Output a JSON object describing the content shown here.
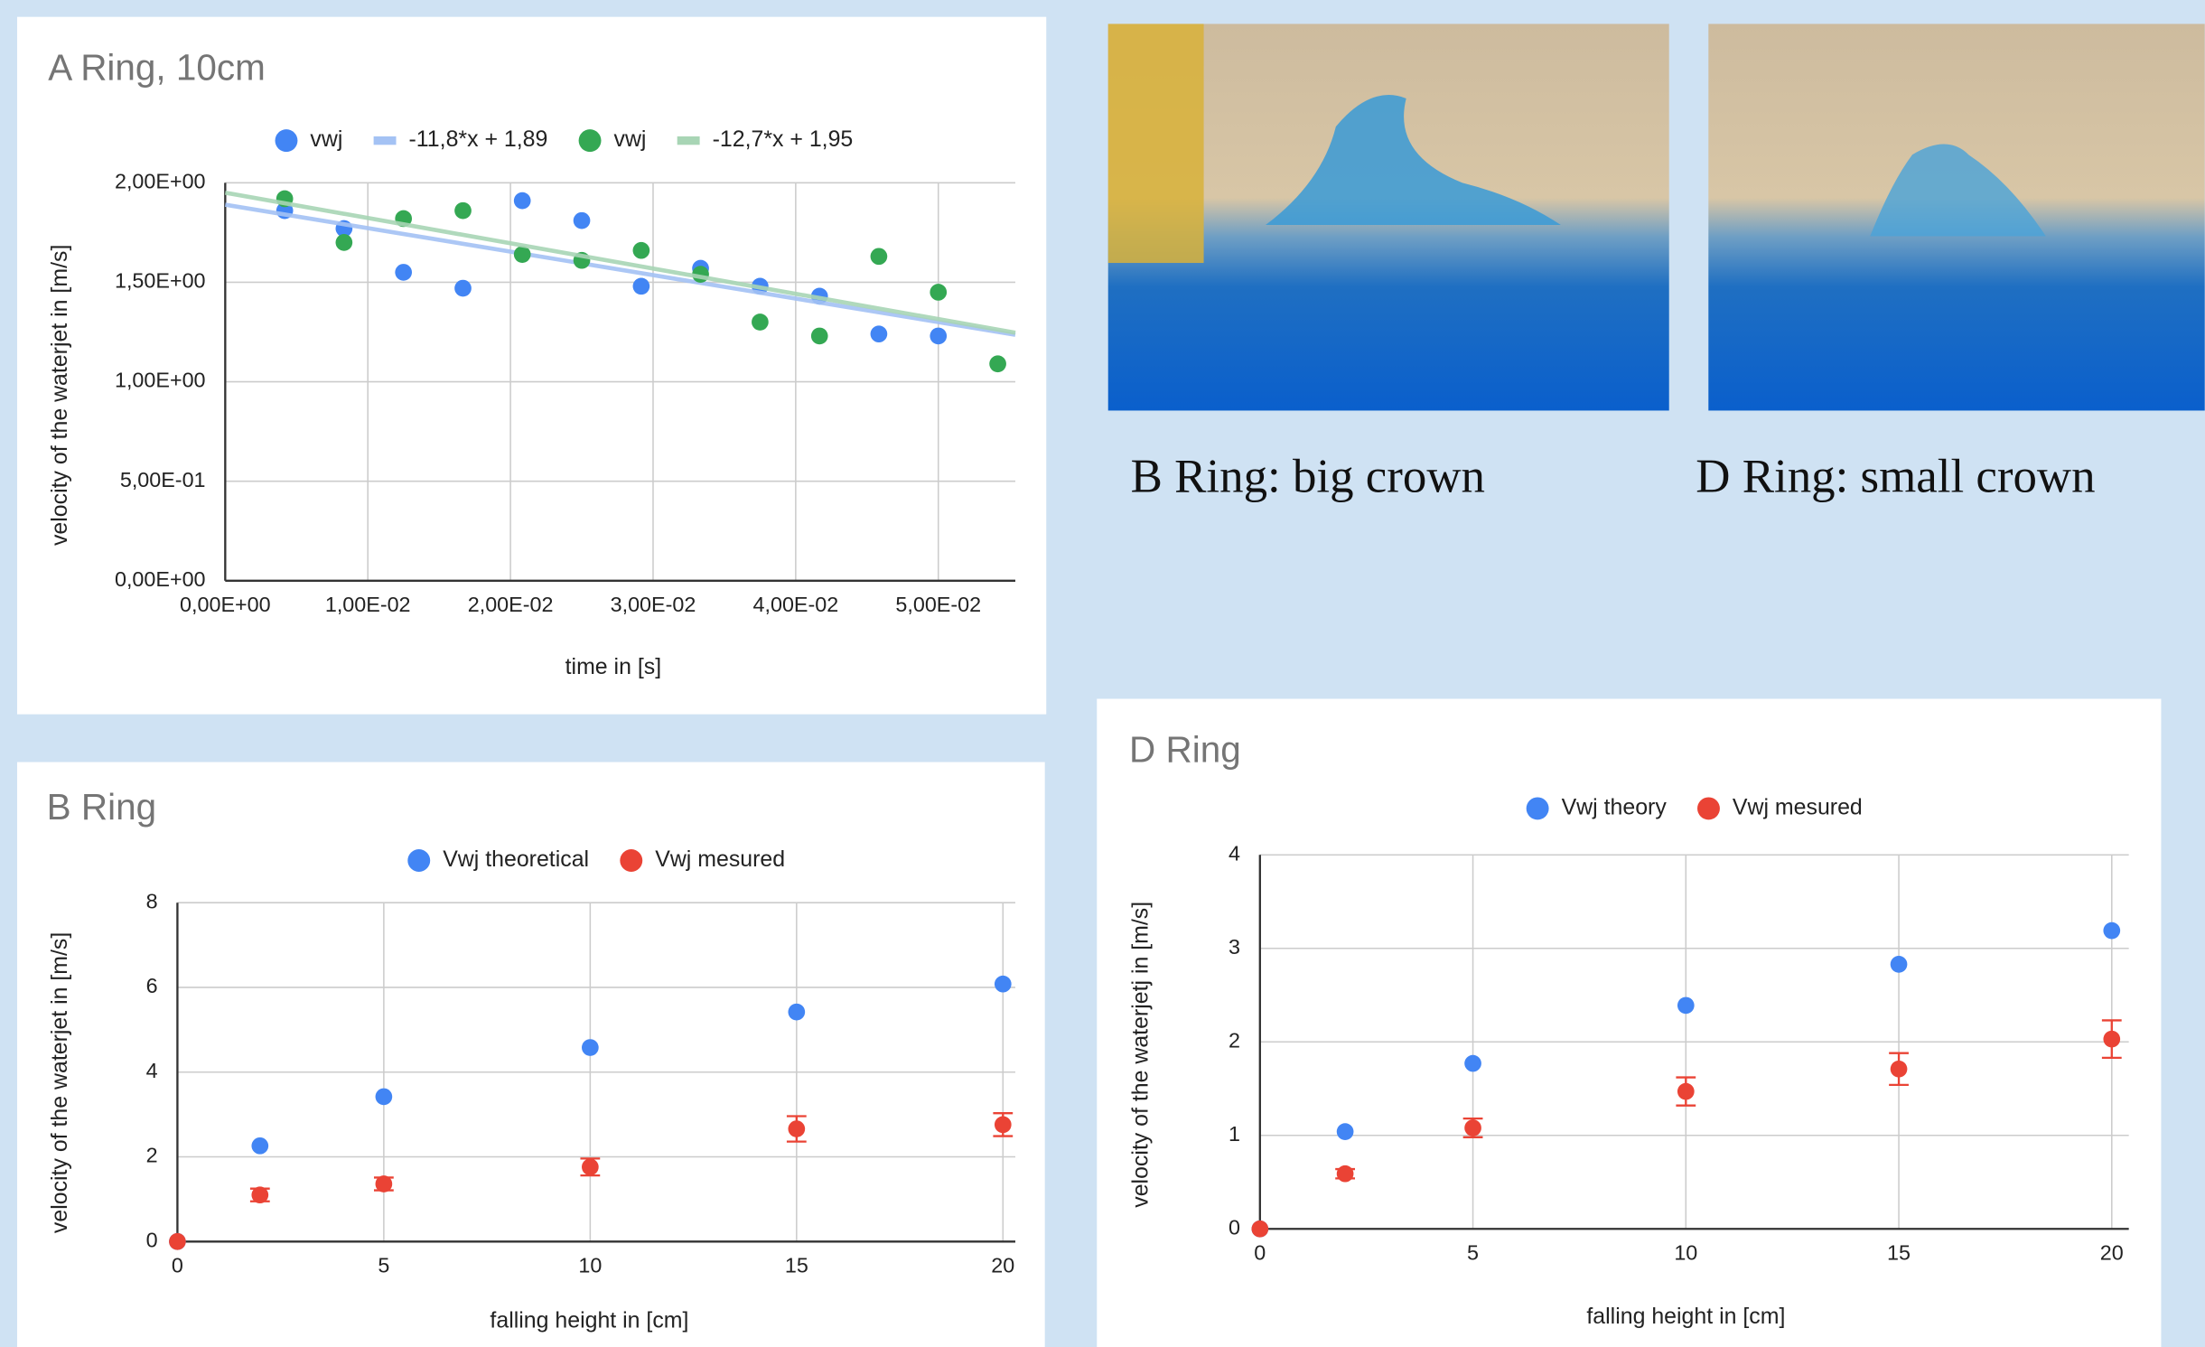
{
  "chart_data": [
    {
      "type": "scatter",
      "title": "A Ring, 10cm",
      "x_label": "time in [s]",
      "y_label": "velocity of the waterjet in [m/s]",
      "xlim": [
        0,
        0.0554
      ],
      "ylim": [
        0,
        2
      ],
      "grid": true,
      "xticks": [
        {
          "value": 0,
          "label": "0,00E+00"
        },
        {
          "value": 0.01,
          "label": "1,00E-02"
        },
        {
          "value": 0.02,
          "label": "2,00E-02"
        },
        {
          "value": 0.03,
          "label": "3,00E-02"
        },
        {
          "value": 0.04,
          "label": "4,00E-02"
        },
        {
          "value": 0.05,
          "label": "5,00E-02"
        }
      ],
      "yticks": [
        {
          "value": 0,
          "label": "0,00E+00"
        },
        {
          "value": 0.5,
          "label": "5,00E-01"
        },
        {
          "value": 1,
          "label": "1,00E+00"
        },
        {
          "value": 1.5,
          "label": "1,50E+00"
        },
        {
          "value": 2,
          "label": "2,00E+00"
        }
      ],
      "series": [
        {
          "name": "vwj",
          "color": "#4285f4",
          "x": [
            0.00417,
            0.00833,
            0.0125,
            0.01667,
            0.02083,
            0.025,
            0.02917,
            0.03333,
            0.0375,
            0.04167,
            0.04583,
            0.05
          ],
          "values": [
            1.86,
            1.77,
            1.55,
            1.47,
            1.91,
            1.81,
            1.48,
            1.57,
            1.48,
            1.43,
            1.24,
            1.23
          ]
        },
        {
          "name": "-11,8*x + 1,89",
          "type": "trendline",
          "color": "#a4c2f4",
          "slope": -11.8,
          "intercept": 1.89
        },
        {
          "name": "vwj",
          "color": "#34a853",
          "x": [
            0.00417,
            0.00833,
            0.0125,
            0.01667,
            0.02083,
            0.025,
            0.02917,
            0.03333,
            0.0375,
            0.04167,
            0.04583,
            0.05,
            0.05417
          ],
          "values": [
            1.92,
            1.7,
            1.82,
            1.86,
            1.64,
            1.61,
            1.66,
            1.54,
            1.3,
            1.23,
            1.63,
            1.45,
            1.09
          ]
        },
        {
          "name": "-12,7*x + 1,95",
          "type": "trendline",
          "color": "#a8d5b5",
          "slope": -12.7,
          "intercept": 1.95
        }
      ]
    },
    {
      "type": "scatter",
      "title": "B Ring",
      "x_label": "falling height in [cm]",
      "y_label": "velocity of the waterjet in [m/s]",
      "xlim": [
        0,
        20.3
      ],
      "ylim": [
        0,
        8
      ],
      "grid": true,
      "xticks": [
        0,
        5,
        10,
        15,
        20
      ],
      "yticks": [
        0,
        2,
        4,
        6,
        8
      ],
      "x": [
        0,
        2,
        5,
        10,
        15,
        20
      ],
      "series": [
        {
          "name": "Vwj theoretical",
          "color": "#4285f4",
          "values": [
            0,
            2.26,
            3.42,
            4.58,
            5.42,
            6.08
          ]
        },
        {
          "name": "Vwj mesured",
          "color": "#ea4335",
          "values": [
            0,
            1.1,
            1.36,
            1.76,
            2.66,
            2.76
          ],
          "errors": [
            0,
            0.15,
            0.15,
            0.2,
            0.3,
            0.27
          ]
        }
      ]
    },
    {
      "type": "scatter",
      "title": "D Ring",
      "x_label": "falling height in [cm]",
      "y_label": "velocity of the waterjetj in [m/s]",
      "xlim": [
        0,
        20.4
      ],
      "ylim": [
        0,
        4
      ],
      "grid": true,
      "xticks": [
        0,
        5,
        10,
        15,
        20
      ],
      "yticks": [
        0,
        1,
        2,
        3,
        4
      ],
      "x": [
        0,
        2,
        5,
        10,
        15,
        20
      ],
      "series": [
        {
          "name": "Vwj theory",
          "color": "#4285f4",
          "values": [
            0,
            1.04,
            1.77,
            2.39,
            2.83,
            3.19
          ]
        },
        {
          "name": "Vwj mesured",
          "color": "#ea4335",
          "values": [
            0,
            0.59,
            1.08,
            1.47,
            1.71,
            2.03
          ],
          "errors": [
            0,
            0.05,
            0.1,
            0.15,
            0.17,
            0.2
          ]
        }
      ]
    }
  ],
  "photos": [
    {
      "caption": "B Ring: big crown"
    },
    {
      "caption": "D Ring: small crown"
    }
  ]
}
